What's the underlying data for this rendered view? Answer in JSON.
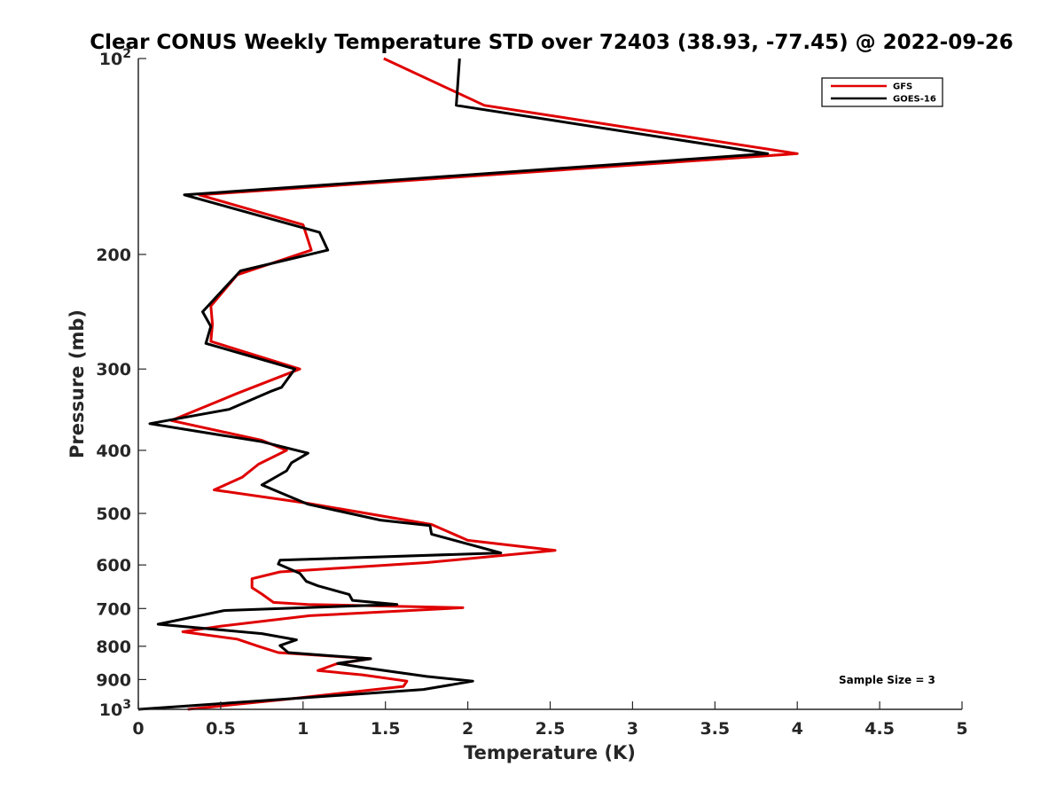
{
  "chart_data": {
    "type": "line",
    "title": "Clear CONUS Weekly Temperature STD over 72403 (38.93, -77.45) @ 2022-09-26",
    "xlabel": "Temperature (K)",
    "ylabel": "Pressure (mb)",
    "xlim": [
      0,
      5
    ],
    "ylim": [
      100,
      1000
    ],
    "y_scale": "log",
    "y_direction": "reversed",
    "grid": false,
    "legend_position": "top-right",
    "x_ticks": [
      0,
      0.5,
      1,
      1.5,
      2,
      2.5,
      3,
      3.5,
      4,
      4.5,
      5
    ],
    "x_tick_labels": [
      "0",
      "0.5",
      "1",
      "1.5",
      "2",
      "2.5",
      "3",
      "3.5",
      "4",
      "4.5",
      "5"
    ],
    "y_ticks": [
      100,
      200,
      300,
      400,
      500,
      600,
      700,
      800,
      900,
      1000
    ],
    "y_tick_labels": [
      {
        "base": "10",
        "exp": "2"
      },
      {
        "base": "200",
        "exp": ""
      },
      {
        "base": "300",
        "exp": ""
      },
      {
        "base": "400",
        "exp": ""
      },
      {
        "base": "500",
        "exp": ""
      },
      {
        "base": "600",
        "exp": ""
      },
      {
        "base": "700",
        "exp": ""
      },
      {
        "base": "800",
        "exp": ""
      },
      {
        "base": "900",
        "exp": ""
      },
      {
        "base": "10",
        "exp": "3"
      }
    ],
    "annotation": "Sample Size = 3",
    "series": [
      {
        "name": "GFS",
        "color": "#e00000",
        "x": [
          1.49,
          2.1,
          4.0,
          0.37,
          1.0,
          1.05,
          0.6,
          0.44,
          0.45,
          0.44,
          0.98,
          0.6,
          0.2,
          0.75,
          0.9,
          0.73,
          0.63,
          0.46,
          1.02,
          1.78,
          2.0,
          2.53,
          1.75,
          0.86,
          0.69,
          0.69,
          0.75,
          0.82,
          1.03,
          1.97,
          1.04,
          0.5,
          0.27,
          0.6,
          0.73,
          0.85,
          1.41,
          1.2,
          1.09,
          1.36,
          1.63,
          1.61,
          0.9,
          0.3
        ],
        "y": [
          100,
          118,
          140,
          162,
          180,
          197,
          215,
          240,
          256,
          272,
          300,
          327,
          360,
          386,
          400,
          420,
          440,
          460,
          482,
          520,
          550,
          570,
          595,
          615,
          630,
          650,
          665,
          685,
          690,
          698,
          718,
          745,
          760,
          780,
          800,
          818,
          836,
          852,
          872,
          885,
          905,
          922,
          965,
          1000
        ]
      },
      {
        "name": "GOES-16",
        "color": "#000000",
        "x": [
          1.95,
          1.93,
          3.82,
          0.28,
          1.1,
          1.15,
          0.62,
          0.39,
          0.44,
          0.41,
          0.95,
          0.87,
          0.8,
          0.55,
          0.07,
          0.75,
          1.03,
          0.93,
          0.9,
          0.75,
          1.03,
          1.47,
          1.77,
          1.78,
          2.2,
          0.86,
          0.85,
          0.98,
          1.02,
          1.09,
          1.28,
          1.3,
          1.57,
          0.52,
          0.12,
          0.75,
          0.96,
          0.86,
          0.91,
          1.41,
          1.21,
          1.37,
          1.75,
          2.03,
          1.92,
          1.73,
          0.0
        ],
        "y": [
          100,
          118,
          140,
          162,
          185,
          197,
          212,
          245,
          258,
          274,
          300,
          320,
          325,
          346,
          364,
          388,
          404,
          418,
          430,
          452,
          484,
          512,
          522,
          538,
          575,
          590,
          598,
          618,
          636,
          646,
          666,
          680,
          690,
          705,
          740,
          765,
          782,
          798,
          818,
          836,
          850,
          863,
          890,
          905,
          915,
          932,
          1000
        ]
      }
    ]
  }
}
